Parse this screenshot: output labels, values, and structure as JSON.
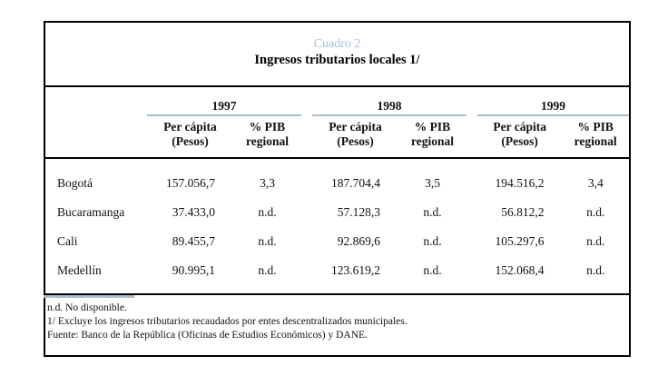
{
  "colors": {
    "accent_blue": "#9CC2E5",
    "border_black": "#000000",
    "background": "#ffffff"
  },
  "title": {
    "caption": "Cuadro 2",
    "heading": "Ingresos tributarios locales 1/"
  },
  "table": {
    "year_groups": [
      {
        "year": "1997",
        "percap_l1": "Per cápita",
        "percap_l2": "(Pesos)",
        "pib_l1": "% PIB",
        "pib_l2": "regional"
      },
      {
        "year": "1998",
        "percap_l1": "Per cápita",
        "percap_l2": "(Pesos)",
        "pib_l1": "% PIB",
        "pib_l2": "regional"
      },
      {
        "year": "1999",
        "percap_l1": "Per cápita",
        "percap_l2": "(Pesos)",
        "pib_l1": "% PIB",
        "pib_l2": "regional"
      }
    ],
    "rows": [
      {
        "city": "Bogotá",
        "v": [
          "157.056,7",
          "3,3",
          "187.704,4",
          "3,5",
          "194.516,2",
          "3,4"
        ]
      },
      {
        "city": "Bucaramanga",
        "v": [
          "37.433,0",
          "n.d.",
          "57.128,3",
          "n.d.",
          "56.812,2",
          "n.d."
        ]
      },
      {
        "city": "Cali",
        "v": [
          "89.455,7",
          "n.d.",
          "92.869,6",
          "n.d.",
          "105.297,6",
          "n.d."
        ]
      },
      {
        "city": "Medellín",
        "v": [
          "90.995,1",
          "n.d.",
          "123.619,2",
          "n.d.",
          "152.068,4",
          "n.d."
        ]
      }
    ]
  },
  "footnotes": {
    "nd": "n.d. No disponible.",
    "note1": "1/ Excluye los ingresos tributarios recaudados por entes descentralizados municipales.",
    "source": "Fuente: Banco de la República (Oficinas de Estudios Económicos) y DANE."
  }
}
